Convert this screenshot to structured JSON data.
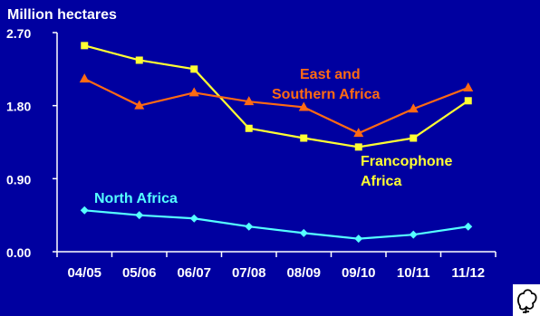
{
  "chart_data": {
    "type": "line",
    "title": "",
    "ylabel": "Million hectares",
    "xlabel": "",
    "ylim": [
      0,
      2.7
    ],
    "yticks": [
      "0.00",
      "0.90",
      "1.80",
      "2.70"
    ],
    "categories": [
      "04/05",
      "05/06",
      "06/07",
      "07/08",
      "08/09",
      "09/10",
      "10/11",
      "11/12"
    ],
    "series": [
      {
        "name": "Francophone Africa",
        "color": "#ffff33",
        "marker": "square",
        "values": [
          2.54,
          2.36,
          2.25,
          1.52,
          1.4,
          1.29,
          1.4,
          1.86
        ]
      },
      {
        "name": "East and Southern Africa",
        "color": "#ff6a13",
        "marker": "triangle",
        "values": [
          2.13,
          1.8,
          1.96,
          1.85,
          1.78,
          1.46,
          1.76,
          2.02
        ]
      },
      {
        "name": "North Africa",
        "color": "#55ffff",
        "marker": "diamond",
        "values": [
          0.51,
          0.45,
          0.41,
          0.31,
          0.23,
          0.16,
          0.21,
          0.31
        ]
      }
    ],
    "legend_labels": {
      "east_line1": "East and",
      "east_line2": "Southern Africa",
      "franco_line1": "Francophone",
      "franco_line2": "Africa",
      "north": "North Africa"
    },
    "grid": false,
    "background": "#0000a0",
    "axis_color": "#ffffff"
  },
  "logo": {
    "icon": "cotton-boll-icon"
  }
}
